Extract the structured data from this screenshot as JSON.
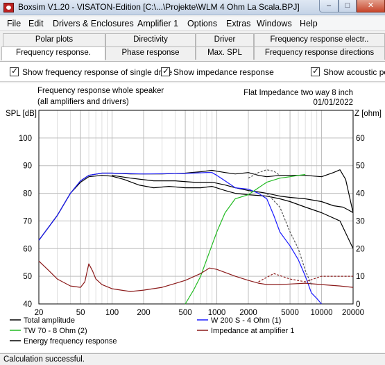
{
  "window": {
    "title": "Boxsim V1.20 - VISATON-Edition [C:\\...\\Projekte\\WLM 4 Ohm La Scala.BPJ]",
    "minimize_glyph": "–",
    "maximize_glyph": "□",
    "close_glyph": "✕"
  },
  "menu": [
    "File",
    "Edit",
    "Drivers & Enclosures",
    "Amplifier 1",
    "Options",
    "Extras",
    "Windows",
    "Help"
  ],
  "tabs_top": [
    "Polar plots",
    "Directivity",
    "Driver",
    "Frequency response electr.."
  ],
  "tabs_bottom": [
    "Frequency response.",
    "Phase response",
    "Max. SPL",
    "Frequency response directions"
  ],
  "options": {
    "single_drive": "Show frequency response of single drive",
    "impedance": "Show impedance response",
    "acoustic": "Show acoustic pow"
  },
  "chart_header": {
    "left_line1": "Frequency response whole speaker",
    "left_line2": "(all amplifiers and drivers)",
    "right_line1": "Flat Impedance two way 8 inch",
    "right_line2": "01/01/2022"
  },
  "chart_data": {
    "type": "line",
    "xscale": "log",
    "xlim": [
      20,
      20000
    ],
    "ylim": [
      40,
      110
    ],
    "y2lim": [
      0,
      70
    ],
    "ylabel": "SPL [dB]",
    "y2label": "Z [ohm]",
    "xticks": [
      20,
      50,
      100,
      200,
      500,
      1000,
      2000,
      5000,
      10000,
      20000
    ],
    "xtick_labels": [
      "20",
      "50",
      "100",
      "200",
      "500",
      "1000",
      "2000",
      "5000",
      "10000",
      "20000"
    ],
    "yticks": [
      40,
      50,
      60,
      70,
      80,
      90,
      100
    ],
    "y2ticks": [
      0,
      10,
      20,
      30,
      40,
      50,
      60
    ],
    "grid": true,
    "series": [
      {
        "name": "Total amplitude",
        "color": "#000000",
        "points": [
          [
            20,
            63
          ],
          [
            30,
            72
          ],
          [
            40,
            80
          ],
          [
            50,
            84.5
          ],
          [
            60,
            86.5
          ],
          [
            80,
            87.3
          ],
          [
            100,
            87.3
          ],
          [
            150,
            87
          ],
          [
            200,
            87
          ],
          [
            300,
            87
          ],
          [
            500,
            87.3
          ],
          [
            700,
            87.8
          ],
          [
            900,
            88.3
          ],
          [
            1200,
            87.5
          ],
          [
            1500,
            87
          ],
          [
            2000,
            87.5
          ],
          [
            2500,
            86.5
          ],
          [
            3000,
            86
          ],
          [
            4000,
            86.5
          ],
          [
            5000,
            86.5
          ],
          [
            7000,
            86.5
          ],
          [
            10000,
            86
          ],
          [
            13000,
            87.5
          ],
          [
            15000,
            88.5
          ],
          [
            17000,
            85
          ],
          [
            20000,
            73
          ]
        ]
      },
      {
        "name": "Energy frequency response",
        "color": "#000000",
        "points": [
          [
            20,
            63
          ],
          [
            30,
            72
          ],
          [
            40,
            80
          ],
          [
            50,
            84
          ],
          [
            60,
            86
          ],
          [
            80,
            86.5
          ],
          [
            100,
            86.2
          ],
          [
            130,
            85
          ],
          [
            180,
            83
          ],
          [
            250,
            82
          ],
          [
            350,
            82.5
          ],
          [
            500,
            82
          ],
          [
            700,
            82
          ],
          [
            900,
            82.5
          ],
          [
            1200,
            81
          ],
          [
            1500,
            80
          ],
          [
            2000,
            79.5
          ],
          [
            3000,
            79
          ],
          [
            4000,
            78
          ],
          [
            5000,
            77
          ],
          [
            7000,
            75
          ],
          [
            10000,
            73
          ],
          [
            15000,
            70
          ],
          [
            20000,
            60
          ]
        ]
      },
      {
        "name": "Energy frequency response (mid curve)",
        "color": "#000000",
        "points": [
          [
            100,
            86.5
          ],
          [
            150,
            85.5
          ],
          [
            250,
            84.5
          ],
          [
            400,
            84.5
          ],
          [
            600,
            84
          ],
          [
            900,
            84
          ],
          [
            1200,
            83
          ],
          [
            1500,
            82
          ],
          [
            2000,
            81
          ],
          [
            2500,
            80.5
          ],
          [
            3000,
            80
          ],
          [
            4000,
            79
          ],
          [
            5000,
            78.5
          ],
          [
            7000,
            78
          ],
          [
            10000,
            77
          ],
          [
            13000,
            75.5
          ],
          [
            16000,
            75
          ],
          [
            18000,
            74
          ],
          [
            20000,
            73
          ]
        ]
      },
      {
        "name": "W 200 S - 4 Ohm (1)",
        "color": "#1a1aff",
        "points": [
          [
            20,
            63
          ],
          [
            30,
            72
          ],
          [
            40,
            80
          ],
          [
            50,
            84.5
          ],
          [
            60,
            86.5
          ],
          [
            80,
            87.3
          ],
          [
            100,
            87.3
          ],
          [
            200,
            87
          ],
          [
            500,
            87.2
          ],
          [
            800,
            87.5
          ],
          [
            900,
            87.5
          ],
          [
            1000,
            86.5
          ],
          [
            1200,
            84.5
          ],
          [
            1500,
            82
          ],
          [
            2000,
            81.5
          ],
          [
            2500,
            80
          ],
          [
            3000,
            78
          ],
          [
            3500,
            72
          ],
          [
            4000,
            66
          ],
          [
            5000,
            61
          ],
          [
            6000,
            56
          ],
          [
            7000,
            50
          ],
          [
            8000,
            44
          ],
          [
            9000,
            42
          ],
          [
            10000,
            40
          ]
        ]
      },
      {
        "name": "TW 70 - 8 Ohm (2)",
        "color": "#22bb22",
        "points": [
          [
            500,
            40
          ],
          [
            600,
            45
          ],
          [
            700,
            50
          ],
          [
            800,
            56
          ],
          [
            1000,
            66
          ],
          [
            1200,
            73
          ],
          [
            1500,
            78
          ],
          [
            2000,
            79.5
          ],
          [
            2500,
            82
          ],
          [
            3000,
            84
          ],
          [
            4000,
            85.5
          ],
          [
            5000,
            86
          ],
          [
            6000,
            86.5
          ],
          [
            7000,
            86.8
          ]
        ]
      },
      {
        "name": "Impedance at amplifier 1",
        "color": "#8b1a1a",
        "axis": "right",
        "points": [
          [
            20,
            15.5
          ],
          [
            25,
            12
          ],
          [
            30,
            9
          ],
          [
            40,
            6.5
          ],
          [
            50,
            6
          ],
          [
            55,
            8
          ],
          [
            60,
            14.5
          ],
          [
            65,
            12
          ],
          [
            70,
            9
          ],
          [
            80,
            7
          ],
          [
            100,
            5.5
          ],
          [
            150,
            4.5
          ],
          [
            200,
            5
          ],
          [
            300,
            6
          ],
          [
            500,
            8.5
          ],
          [
            700,
            11
          ],
          [
            850,
            13
          ],
          [
            1000,
            12.5
          ],
          [
            1500,
            10
          ],
          [
            2000,
            8.5
          ],
          [
            2500,
            7.5
          ],
          [
            3000,
            7
          ],
          [
            4000,
            7
          ],
          [
            5000,
            7.2
          ],
          [
            7000,
            7.5
          ],
          [
            10000,
            7
          ],
          [
            15000,
            6.5
          ],
          [
            20000,
            6
          ]
        ]
      },
      {
        "name": "Impedance at amplifier 1 (dashed)",
        "color": "#8b1a1a",
        "axis": "right",
        "dashed": true,
        "points": [
          [
            2500,
            8
          ],
          [
            3500,
            11
          ],
          [
            5000,
            9
          ],
          [
            7000,
            8
          ],
          [
            10000,
            10
          ],
          [
            15000,
            10
          ],
          [
            20000,
            10
          ]
        ]
      },
      {
        "name": "Total amplitude (dashed)",
        "color": "#555555",
        "dashed": true,
        "points": [
          [
            2000,
            85.5
          ],
          [
            2500,
            87.5
          ],
          [
            3000,
            88.5
          ],
          [
            3500,
            88
          ],
          [
            4000,
            86.5
          ]
        ]
      },
      {
        "name": "W 200 S - 4 Ohm (1) (dashed)",
        "color": "#555555",
        "dashed": true,
        "points": [
          [
            3000,
            80
          ],
          [
            4000,
            75
          ],
          [
            5000,
            66
          ],
          [
            6000,
            60
          ],
          [
            7000,
            52
          ],
          [
            8000,
            47
          ]
        ]
      }
    ],
    "legend": [
      {
        "label": "Total amplitude",
        "color": "#000000",
        "col": 0,
        "row": 0
      },
      {
        "label": "TW 70 - 8 Ohm (2)",
        "color": "#22bb22",
        "col": 0,
        "row": 1
      },
      {
        "label": "Energy frequency response",
        "color": "#000000",
        "col": 0,
        "row": 2
      },
      {
        "label": "W 200 S - 4 Ohm (1)",
        "color": "#1a1aff",
        "col": 1,
        "row": 0
      },
      {
        "label": "Impedance at amplifier 1",
        "color": "#8b1a1a",
        "col": 1,
        "row": 1
      }
    ]
  },
  "status": "Calculation successful."
}
